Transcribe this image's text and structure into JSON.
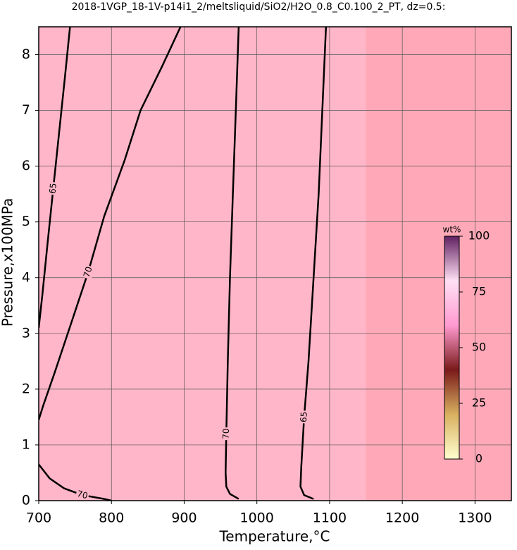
{
  "chart_data": {
    "type": "contour",
    "title": "2018-1VGP_18-1V-p14i1_2/meltsliquid/SiO2/H2O_0.8_C0.100_2_PT, dz=0.5:",
    "xlabel": "Temperature,°C",
    "ylabel": "Pressure,x100MPa",
    "xlim": [
      700,
      1350
    ],
    "xticks": [
      700,
      800,
      900,
      1000,
      1100,
      1200,
      1300
    ],
    "ylim": [
      0,
      8.5
    ],
    "yticks": [
      0,
      1,
      2,
      3,
      4,
      5,
      6,
      7,
      8
    ],
    "grid": true,
    "background_colors": [
      "#ffb6c8",
      "#ffa9b8"
    ],
    "colorbar": {
      "label": "wt%",
      "lim": [
        0,
        100
      ],
      "ticks": [
        0,
        25,
        50,
        75,
        100
      ],
      "colors": [
        "#ffffd0",
        "#d8b060",
        "#7a1a1a",
        "#ff9ad0",
        "#ffe0f4",
        "#602060"
      ]
    },
    "contours": [
      {
        "level": 70,
        "color": "#000000",
        "x": [
          975,
          971,
          967,
          963,
          960,
          958,
          957,
          958,
          963,
          975
        ],
        "y": [
          8.5,
          7,
          5.5,
          4,
          2.5,
          1.2,
          0.5,
          0.25,
          0.12,
          0.03
        ]
      },
      {
        "level": 65,
        "color": "#000000",
        "x": [
          1095,
          1090,
          1085,
          1078,
          1071,
          1065,
          1061,
          1060,
          1065,
          1078
        ],
        "y": [
          8.5,
          7,
          5.5,
          4,
          2.5,
          1.5,
          0.6,
          0.25,
          0.1,
          0.03
        ]
      },
      {
        "level": 70,
        "color": "#000000",
        "x": [
          895,
          870,
          840,
          818,
          790,
          768,
          745,
          722,
          706,
          700
        ],
        "y": [
          8.5,
          7.8,
          7,
          6.1,
          5.1,
          4.1,
          3.2,
          2.3,
          1.7,
          1.45
        ]
      },
      {
        "level": 65,
        "color": "#000000",
        "x": [
          743,
          736,
          728,
          720,
          712,
          705,
          700
        ],
        "y": [
          8.5,
          7.6,
          6.6,
          5.6,
          4.6,
          3.7,
          3.1
        ]
      },
      {
        "level": 70,
        "color": "#000000",
        "x": [
          700,
          715,
          735,
          760,
          790,
          800
        ],
        "y": [
          0.65,
          0.4,
          0.22,
          0.1,
          0.03,
          0
        ]
      }
    ]
  }
}
